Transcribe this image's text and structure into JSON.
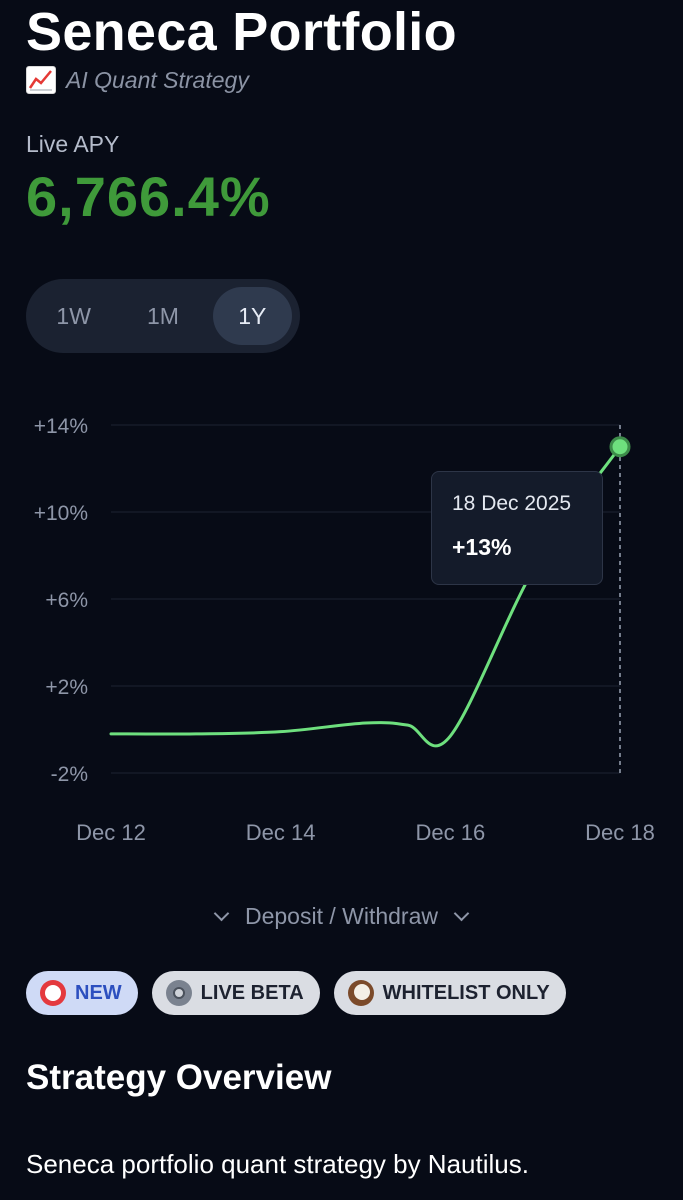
{
  "header": {
    "title": "Seneca Portfolio",
    "subtitle": "AI Quant Strategy",
    "subtitle_icon": "chart-increasing-icon"
  },
  "apy": {
    "label": "Live APY",
    "value": "6,766.4%",
    "color": "#3f9a3a"
  },
  "range_tabs": {
    "items": [
      "1W",
      "1M",
      "1Y"
    ],
    "selected": "1Y"
  },
  "chart_data": {
    "type": "line",
    "x": [
      "Dec 12",
      "Dec 13",
      "Dec 14",
      "Dec 15",
      "Dec 15.5",
      "Dec 16",
      "Dec 17",
      "Dec 18"
    ],
    "y": [
      -0.2,
      -0.2,
      -0.1,
      0.3,
      0.2,
      -0.3,
      7.5,
      13
    ],
    "x_ticks": [
      "Dec 12",
      "Dec 14",
      "Dec 16",
      "Dec 18"
    ],
    "y_ticks": [
      "+14%",
      "+10%",
      "+6%",
      "+2%",
      "-2%"
    ],
    "y_tick_values": [
      14,
      10,
      6,
      2,
      -2
    ],
    "ylim": [
      -2,
      14
    ],
    "grid": true,
    "line_color": "#6ee07e",
    "tooltip": {
      "date": "18 Dec 2025",
      "value": "+13%"
    }
  },
  "deposit_toggle": {
    "label": "Deposit / Withdraw"
  },
  "badges": [
    {
      "label": "NEW",
      "icon": "alarm-clock-icon"
    },
    {
      "label": "LIVE BETA",
      "icon": "gear-icon"
    },
    {
      "label": "WHITELIST ONLY",
      "icon": "coconut-icon"
    }
  ],
  "overview": {
    "title": "Strategy Overview",
    "body": "Seneca portfolio quant strategy by Nautilus."
  }
}
